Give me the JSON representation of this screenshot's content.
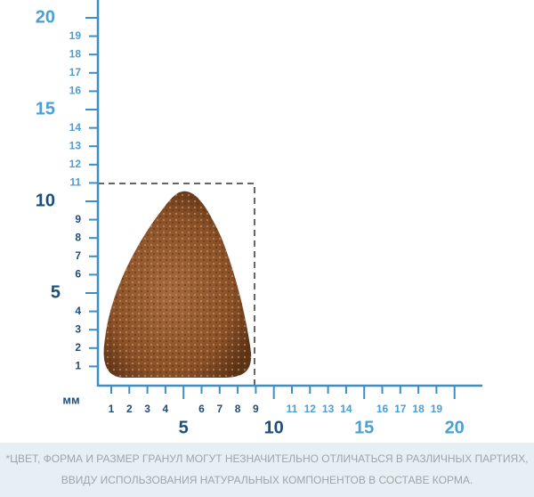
{
  "vertical_ruler": {
    "labels": [
      1,
      2,
      3,
      4,
      5,
      6,
      7,
      8,
      9,
      10,
      11,
      12,
      13,
      14,
      15,
      16,
      17,
      18,
      19,
      20
    ]
  },
  "horizontal_ruler": {
    "labels": [
      1,
      2,
      3,
      4,
      5,
      6,
      7,
      8,
      9,
      10,
      11,
      12,
      13,
      14,
      15,
      16,
      17,
      18,
      19,
      20
    ]
  },
  "unit": "мм",
  "footnote": [
    "*ЦВЕТ, ФОРМА И РАЗМЕР ГРАНУЛ МОГУТ НЕЗНАЧИТЕЛЬНО ОТЛИЧАТЬСЯ В РАЗЛИЧНЫХ ПАРТИЯХ,",
    "ВВИДУ ИСПОЛЬЗОВАНИЯ НАТУРАЛЬНЫХ КОМПОНЕНТОВ В СОСТАВЕ КОРМА."
  ]
}
